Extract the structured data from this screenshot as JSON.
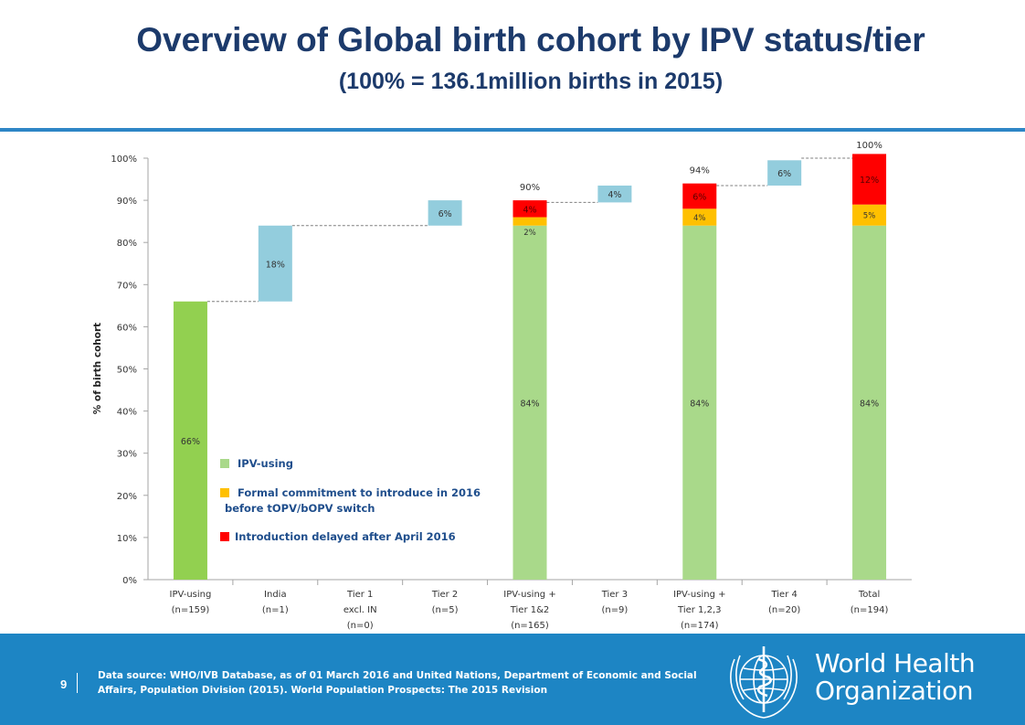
{
  "header": {
    "title": "Overview of Global birth cohort by IPV status/tier",
    "subtitle": "(100% = 136.1million births in 2015)"
  },
  "chart_data": {
    "type": "bar",
    "subtype": "waterfall",
    "ylabel": "% of birth cohort",
    "ylim": [
      0,
      100
    ],
    "y_ticks": [
      "0%",
      "10%",
      "20%",
      "30%",
      "40%",
      "50%",
      "60%",
      "70%",
      "80%",
      "90%",
      "100%"
    ],
    "categories": [
      {
        "lines": [
          "IPV-using",
          "(n=159)"
        ]
      },
      {
        "lines": [
          "India",
          "(n=1)"
        ]
      },
      {
        "lines": [
          "Tier 1",
          "excl. IN",
          "(n=0)"
        ]
      },
      {
        "lines": [
          "Tier 2",
          "(n=5)"
        ]
      },
      {
        "lines": [
          "IPV-using +",
          "Tier 1&2",
          "(n=165)"
        ]
      },
      {
        "lines": [
          "Tier 3",
          "(n=9)"
        ]
      },
      {
        "lines": [
          "IPV-using +",
          "Tier 1,2,3",
          "(n=174)"
        ]
      },
      {
        "lines": [
          "Tier 4",
          "(n=20)"
        ]
      },
      {
        "lines": [
          "Total",
          "(n=194)"
        ]
      }
    ],
    "bars": [
      {
        "category": 0,
        "kind": "ipv_base",
        "bottom": 0,
        "value": 66,
        "label": "66%"
      },
      {
        "category": 1,
        "kind": "increment",
        "bottom": 66,
        "value": 18,
        "label": "18%"
      },
      {
        "category": 3,
        "kind": "increment",
        "bottom": 84,
        "value": 6,
        "label": "6%"
      },
      {
        "category": 4,
        "kind": "ipv",
        "bottom": 0,
        "value": 84,
        "label": "84%"
      },
      {
        "category": 4,
        "kind": "commitment",
        "bottom": 84,
        "value": 2,
        "label": "2%"
      },
      {
        "category": 4,
        "kind": "delayed",
        "bottom": 86,
        "value": 4,
        "label": "4%"
      },
      {
        "category": 5,
        "kind": "increment",
        "bottom": 89.5,
        "value": 4,
        "label": "4%"
      },
      {
        "category": 6,
        "kind": "ipv",
        "bottom": 0,
        "value": 84,
        "label": "84%"
      },
      {
        "category": 6,
        "kind": "commitment",
        "bottom": 84,
        "value": 4,
        "label": "4%"
      },
      {
        "category": 6,
        "kind": "delayed",
        "bottom": 88,
        "value": 6,
        "label": "6%"
      },
      {
        "category": 7,
        "kind": "increment",
        "bottom": 93.5,
        "value": 6,
        "label": "6%"
      },
      {
        "category": 8,
        "kind": "ipv",
        "bottom": 0,
        "value": 84,
        "label": "84%"
      },
      {
        "category": 8,
        "kind": "commitment",
        "bottom": 84,
        "value": 5,
        "label": "5%"
      },
      {
        "category": 8,
        "kind": "delayed",
        "bottom": 89,
        "value": 12,
        "label": "12%"
      }
    ],
    "totals": [
      {
        "category": 4,
        "value": 90,
        "label": "90%"
      },
      {
        "category": 6,
        "value": 94,
        "label": "94%"
      },
      {
        "category": 8,
        "value": 100,
        "label": "100%"
      }
    ],
    "connectors": [
      {
        "from": 0,
        "to": 1,
        "value": 66
      },
      {
        "from": 1,
        "to": 3,
        "value": 84
      },
      {
        "from": 4,
        "to": 5,
        "value": 89.5
      },
      {
        "from": 6,
        "to": 7,
        "value": 93.5
      },
      {
        "from": 7,
        "to": 8,
        "value": 100
      }
    ],
    "legend": {
      "placement": "inside-left",
      "items": [
        {
          "kind": "ipv",
          "lines": [
            "IPV-using"
          ]
        },
        {
          "kind": "commitment",
          "lines": [
            "Formal commitment to introduce in 2016",
            "before tOPV/bOPV switch"
          ]
        },
        {
          "kind": "delayed",
          "lines": [
            "Introduction delayed after April 2016"
          ]
        }
      ]
    },
    "colors": {
      "ipv_base": "#92d050",
      "ipv": "#a9d98a",
      "increment": "#93cddd",
      "commitment": "#ffc000",
      "delayed": "#ff0000",
      "legend_text": "#1f4e8c",
      "connector": "#7f7f7f"
    },
    "grid": false
  },
  "footer": {
    "page_number": "9",
    "source": "Data source: WHO/IVB Database, as of 01 March 2016 and United Nations, Department of Economic and Social Affairs, Population Division (2015). World Population Prospects: The 2015 Revision",
    "org_name_1": "World Health",
    "org_name_2": "Organization"
  }
}
